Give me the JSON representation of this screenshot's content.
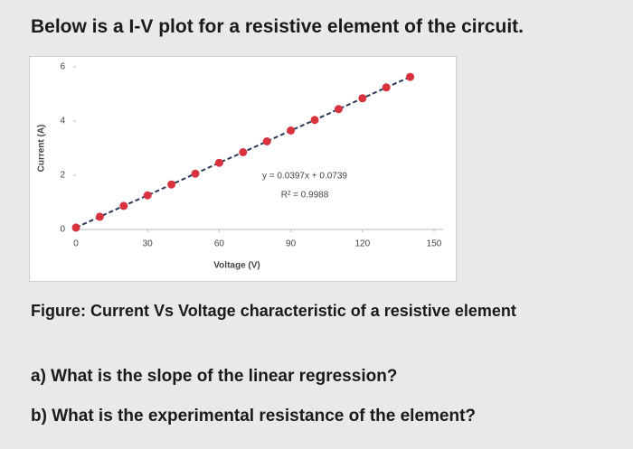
{
  "header": {
    "title": "Below is a I-V plot for a resistive element of the circuit."
  },
  "chart_data": {
    "type": "scatter",
    "x_label": "Voltage (V)",
    "y_label": "Current (A)",
    "x": [
      0,
      10,
      20,
      30,
      40,
      50,
      60,
      70,
      80,
      90,
      100,
      110,
      120,
      130,
      140
    ],
    "values": [
      0.07,
      0.47,
      0.87,
      1.26,
      1.66,
      2.06,
      2.46,
      2.85,
      3.25,
      3.65,
      4.04,
      4.44,
      4.84,
      5.24,
      5.63
    ],
    "color": "#d9333f",
    "trendline_color": "#2b3a55",
    "xlim": [
      0,
      150
    ],
    "xticks": [
      0,
      30,
      60,
      90,
      120,
      150
    ],
    "ylim": [
      0,
      6
    ],
    "yticks": [
      0,
      2,
      4,
      6
    ],
    "annotations": [
      "y = 0.0397x + 0.0739",
      "R² = 0.9988"
    ]
  },
  "caption": "Figure: Current Vs Voltage characteristic of a resistive element",
  "questions": [
    "a) What is the slope of the linear regression?",
    "b) What is the experimental resistance of the element?"
  ]
}
